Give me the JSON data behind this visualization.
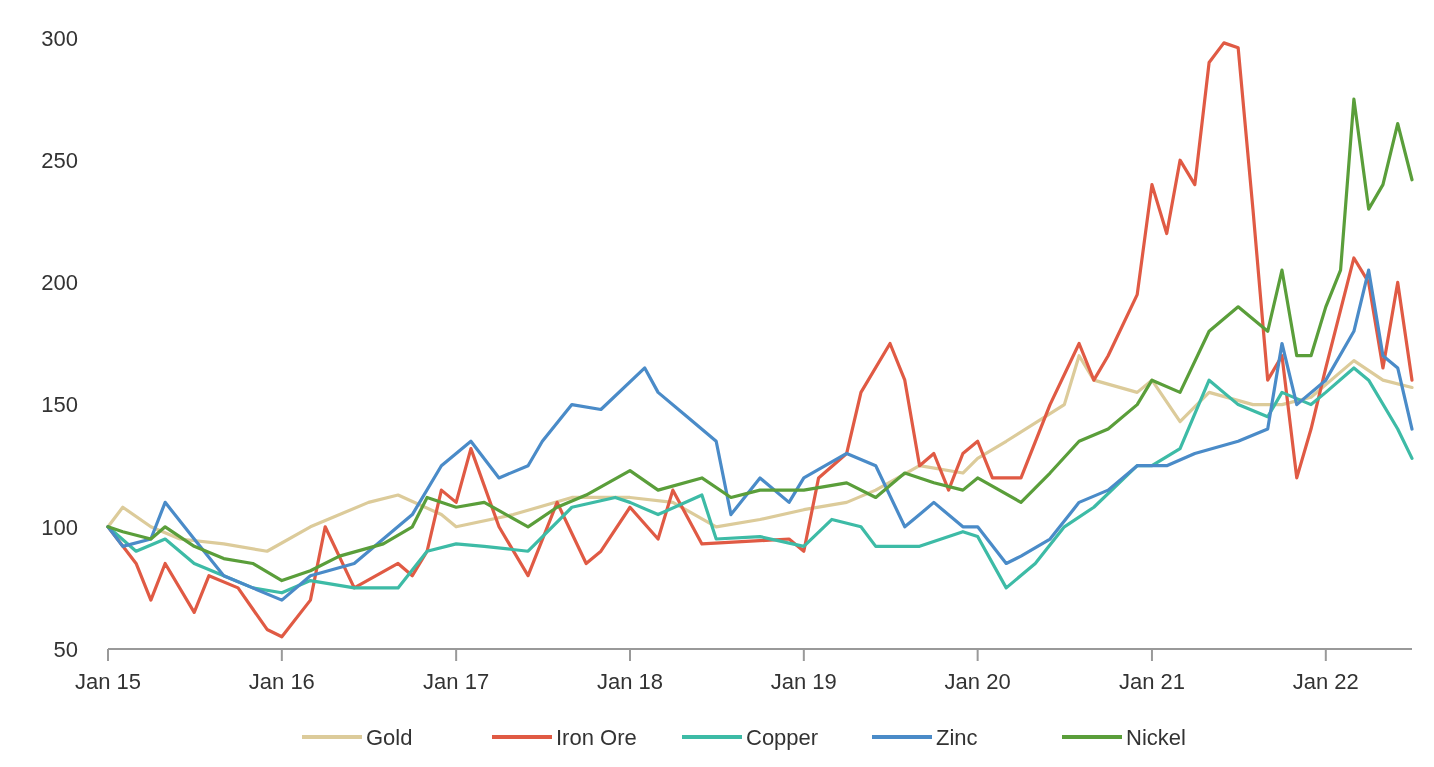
{
  "chart_data": {
    "type": "line",
    "xlim": [
      "2015-01",
      "2022-07"
    ],
    "ylim": [
      50,
      300
    ],
    "yticks": [
      50,
      100,
      150,
      200,
      250,
      300
    ],
    "xticks": [
      {
        "value": "2015-01",
        "label": "Jan 15"
      },
      {
        "value": "2016-01",
        "label": "Jan 16"
      },
      {
        "value": "2017-01",
        "label": "Jan 17"
      },
      {
        "value": "2018-01",
        "label": "Jan 18"
      },
      {
        "value": "2019-01",
        "label": "Jan 19"
      },
      {
        "value": "2020-01",
        "label": "Jan 20"
      },
      {
        "value": "2021-01",
        "label": "Jan 21"
      },
      {
        "value": "2022-01",
        "label": "Jan 22"
      }
    ],
    "legend": "bottom",
    "grid": false,
    "marker": "none",
    "line_style": "solid",
    "series": [
      {
        "name": "Gold",
        "color": "#dccb9a",
        "x": [
          "2015-01",
          "2015-02",
          "2015-04",
          "2015-06",
          "2015-09",
          "2015-12",
          "2016-03",
          "2016-07",
          "2016-09",
          "2016-12",
          "2017-01",
          "2017-05",
          "2017-09",
          "2018-01",
          "2018-04",
          "2018-07",
          "2018-10",
          "2019-01",
          "2019-04",
          "2019-06",
          "2019-09",
          "2019-12",
          "2020-01",
          "2020-03",
          "2020-07",
          "2020-08",
          "2020-09",
          "2020-12",
          "2021-01",
          "2021-03",
          "2021-05",
          "2021-08",
          "2021-10",
          "2021-12",
          "2022-03",
          "2022-05",
          "2022-07"
        ],
        "values": [
          100,
          108,
          100,
          95,
          93,
          90,
          100,
          110,
          113,
          105,
          100,
          105,
          112,
          112,
          110,
          100,
          103,
          107,
          110,
          115,
          125,
          122,
          128,
          135,
          150,
          170,
          160,
          155,
          160,
          143,
          155,
          150,
          150,
          153,
          168,
          160,
          157
        ]
      },
      {
        "name": "Iron Ore",
        "color": "#e05a44",
        "x": [
          "2015-01",
          "2015-03",
          "2015-04",
          "2015-05",
          "2015-07",
          "2015-08",
          "2015-10",
          "2015-12",
          "2016-01",
          "2016-03",
          "2016-04",
          "2016-06",
          "2016-09",
          "2016-10",
          "2016-11",
          "2016-12",
          "2017-01",
          "2017-02",
          "2017-04",
          "2017-06",
          "2017-08",
          "2017-10",
          "2017-11",
          "2018-01",
          "2018-03",
          "2018-04",
          "2018-06",
          "2018-12",
          "2019-01",
          "2019-02",
          "2019-04",
          "2019-05",
          "2019-07",
          "2019-08",
          "2019-09",
          "2019-10",
          "2019-11",
          "2019-12",
          "2020-01",
          "2020-02",
          "2020-04",
          "2020-06",
          "2020-08",
          "2020-09",
          "2020-10",
          "2020-12",
          "2021-01",
          "2021-02",
          "2021-03",
          "2021-04",
          "2021-05",
          "2021-06",
          "2021-07",
          "2021-08",
          "2021-09",
          "2021-10",
          "2021-11",
          "2021-12",
          "2022-01",
          "2022-03",
          "2022-04",
          "2022-05",
          "2022-06",
          "2022-07"
        ],
        "values": [
          100,
          85,
          70,
          85,
          65,
          80,
          75,
          58,
          55,
          70,
          100,
          75,
          85,
          80,
          90,
          115,
          110,
          132,
          100,
          80,
          110,
          85,
          90,
          108,
          95,
          115,
          93,
          95,
          90,
          120,
          130,
          155,
          175,
          160,
          125,
          130,
          115,
          130,
          135,
          120,
          120,
          150,
          175,
          160,
          170,
          195,
          240,
          220,
          250,
          240,
          290,
          298,
          296,
          230,
          160,
          170,
          120,
          140,
          165,
          210,
          200,
          165,
          200,
          160
        ]
      },
      {
        "name": "Copper",
        "color": "#3dbba6",
        "x": [
          "2015-01",
          "2015-03",
          "2015-05",
          "2015-07",
          "2015-09",
          "2015-11",
          "2016-01",
          "2016-03",
          "2016-06",
          "2016-09",
          "2016-11",
          "2017-01",
          "2017-03",
          "2017-06",
          "2017-09",
          "2017-12",
          "2018-01",
          "2018-03",
          "2018-06",
          "2018-07",
          "2018-10",
          "2019-01",
          "2019-03",
          "2019-05",
          "2019-06",
          "2019-09",
          "2019-12",
          "2020-01",
          "2020-03",
          "2020-05",
          "2020-07",
          "2020-09",
          "2020-12",
          "2021-01",
          "2021-03",
          "2021-05",
          "2021-07",
          "2021-09",
          "2021-10",
          "2021-12",
          "2022-01",
          "2022-03",
          "2022-04",
          "2022-06",
          "2022-07"
        ],
        "values": [
          100,
          90,
          95,
          85,
          80,
          75,
          73,
          78,
          75,
          75,
          90,
          93,
          92,
          90,
          108,
          112,
          110,
          105,
          113,
          95,
          96,
          92,
          103,
          100,
          92,
          92,
          98,
          96,
          75,
          85,
          100,
          108,
          125,
          125,
          132,
          160,
          150,
          145,
          155,
          150,
          155,
          165,
          160,
          140,
          128
        ]
      },
      {
        "name": "Zinc",
        "color": "#4a8bc8",
        "x": [
          "2015-01",
          "2015-02",
          "2015-04",
          "2015-05",
          "2015-07",
          "2015-09",
          "2015-11",
          "2016-01",
          "2016-03",
          "2016-06",
          "2016-08",
          "2016-10",
          "2016-12",
          "2017-01",
          "2017-02",
          "2017-04",
          "2017-06",
          "2017-07",
          "2017-09",
          "2017-11",
          "2018-02",
          "2018-03",
          "2018-05",
          "2018-07",
          "2018-08",
          "2018-10",
          "2018-12",
          "2019-01",
          "2019-04",
          "2019-06",
          "2019-08",
          "2019-09",
          "2019-10",
          "2019-12",
          "2020-01",
          "2020-03",
          "2020-04",
          "2020-06",
          "2020-08",
          "2020-10",
          "2020-12",
          "2021-02",
          "2021-04",
          "2021-07",
          "2021-09",
          "2021-10",
          "2021-11",
          "2022-01",
          "2022-03",
          "2022-04",
          "2022-05",
          "2022-06",
          "2022-07"
        ],
        "values": [
          100,
          92,
          95,
          110,
          95,
          80,
          75,
          70,
          80,
          85,
          95,
          105,
          125,
          130,
          135,
          120,
          125,
          135,
          150,
          148,
          165,
          155,
          145,
          135,
          105,
          120,
          110,
          120,
          130,
          125,
          100,
          105,
          110,
          100,
          100,
          85,
          88,
          95,
          110,
          115,
          125,
          125,
          130,
          135,
          140,
          175,
          150,
          160,
          180,
          205,
          170,
          165,
          140
        ]
      },
      {
        "name": "Nickel",
        "color": "#5a9e3a",
        "x": [
          "2015-01",
          "2015-02",
          "2015-04",
          "2015-05",
          "2015-07",
          "2015-09",
          "2015-11",
          "2016-01",
          "2016-03",
          "2016-05",
          "2016-08",
          "2016-10",
          "2016-11",
          "2017-01",
          "2017-03",
          "2017-06",
          "2017-08",
          "2017-10",
          "2018-01",
          "2018-03",
          "2018-06",
          "2018-08",
          "2018-10",
          "2019-01",
          "2019-04",
          "2019-06",
          "2019-08",
          "2019-10",
          "2019-12",
          "2020-01",
          "2020-04",
          "2020-06",
          "2020-08",
          "2020-10",
          "2020-12",
          "2021-01",
          "2021-03",
          "2021-05",
          "2021-07",
          "2021-09",
          "2021-10",
          "2021-11",
          "2021-12",
          "2022-01",
          "2022-02",
          "2022-03",
          "2022-04",
          "2022-05",
          "2022-06",
          "2022-07"
        ],
        "values": [
          100,
          98,
          95,
          100,
          92,
          87,
          85,
          78,
          82,
          88,
          93,
          100,
          112,
          108,
          110,
          100,
          108,
          113,
          123,
          115,
          120,
          112,
          115,
          115,
          118,
          112,
          122,
          118,
          115,
          120,
          110,
          122,
          135,
          140,
          150,
          160,
          155,
          180,
          190,
          180,
          205,
          170,
          170,
          190,
          205,
          275,
          230,
          240,
          265,
          242
        ]
      }
    ]
  }
}
